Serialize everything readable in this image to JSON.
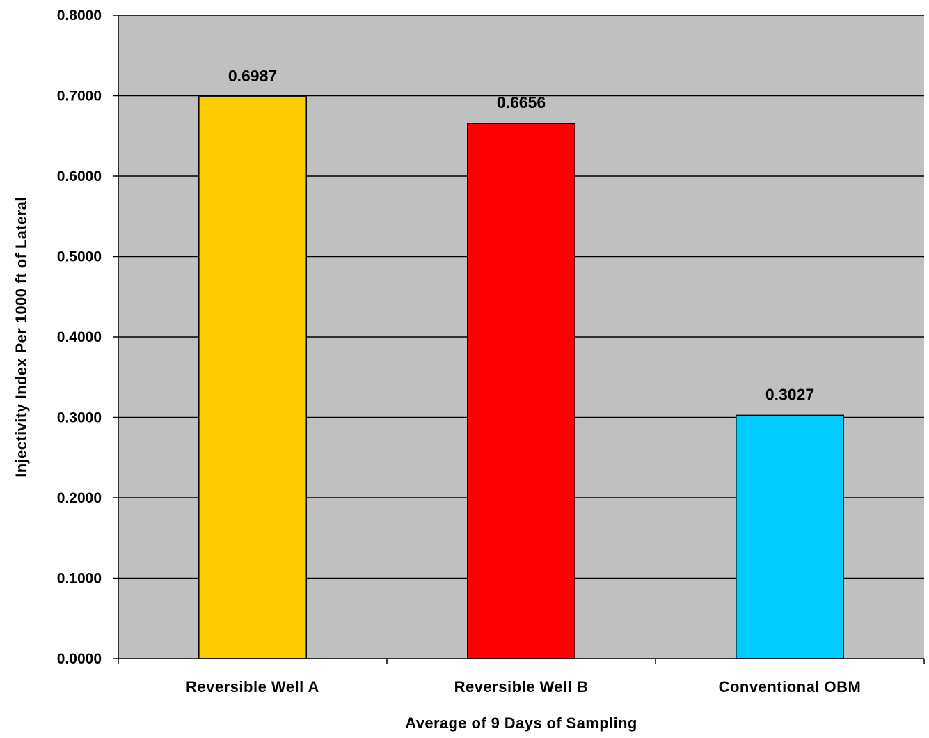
{
  "chart_data": {
    "type": "bar",
    "title": "",
    "xlabel": "Average of 9 Days of Sampling",
    "ylabel": "Injectivity Index Per 1000 ft of Lateral",
    "categories": [
      "Reversible Well A",
      "Reversible Well B",
      "Conventional OBM"
    ],
    "values": [
      0.6987,
      0.6656,
      0.3027
    ],
    "value_labels": [
      "0.6987",
      "0.6656",
      "0.3027"
    ],
    "bar_colors": [
      "#FFCC00",
      "#FF0000",
      "#00CCFF"
    ],
    "ylim": [
      0,
      0.8
    ],
    "yticks": [
      0,
      0.1,
      0.2,
      0.3,
      0.4,
      0.5,
      0.6,
      0.7,
      0.8
    ],
    "ytick_labels": [
      "0.0000",
      "0.1000",
      "0.2000",
      "0.3000",
      "0.4000",
      "0.5000",
      "0.6000",
      "0.7000",
      "0.8000"
    ],
    "grid": true,
    "plot_background": "#C0C0C0",
    "legend": "none"
  }
}
